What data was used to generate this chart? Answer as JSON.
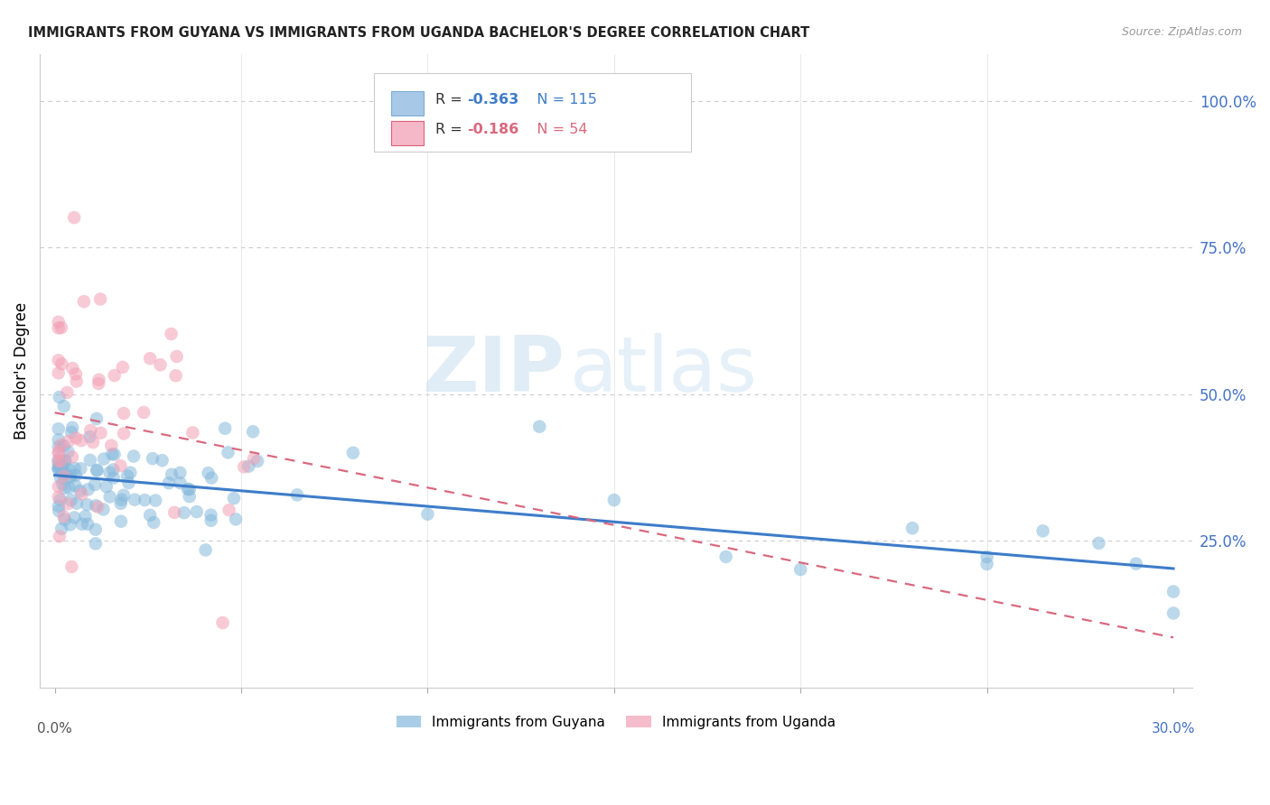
{
  "title": "IMMIGRANTS FROM GUYANA VS IMMIGRANTS FROM UGANDA BACHELOR'S DEGREE CORRELATION CHART",
  "source": "Source: ZipAtlas.com",
  "ylabel": "Bachelor's Degree",
  "ytick_labels": [
    "100.0%",
    "75.0%",
    "50.0%",
    "25.0%"
  ],
  "ytick_positions": [
    1.0,
    0.75,
    0.5,
    0.25
  ],
  "xlim": [
    0.0,
    0.3
  ],
  "ylim": [
    0.0,
    1.08
  ],
  "guyana_color": "#85b8dc",
  "uganda_color": "#f2a0b5",
  "guyana_line_color": "#3d7cc9",
  "uganda_line_color": "#d9697e",
  "guyana_R": "-0.363",
  "guyana_N": "115",
  "uganda_R": "-0.186",
  "uganda_N": "54",
  "watermark_zip": "ZIP",
  "watermark_atlas": "atlas",
  "watermark_color_zip": "#c8dff0",
  "watermark_color_atlas": "#c8dff0",
  "legend_guyana_label": "Immigrants from Guyana",
  "legend_uganda_label": "Immigrants from Uganda",
  "grid_color": "#cccccc",
  "guyana_seed": 42,
  "uganda_seed": 99
}
